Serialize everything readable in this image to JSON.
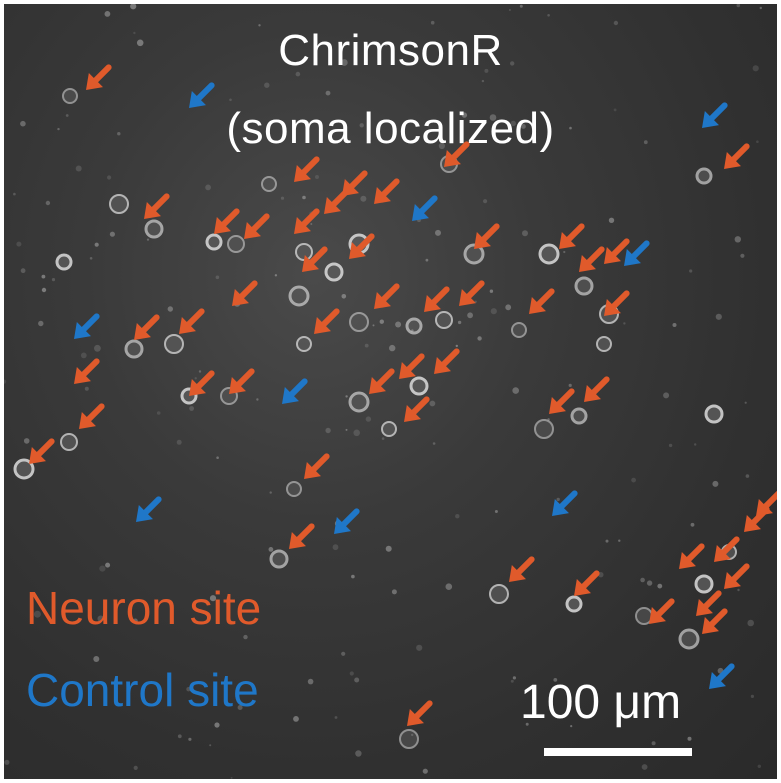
{
  "title_line1": "ChrimsonR",
  "title_line2": "(soma localized)",
  "legend": {
    "neuron": {
      "label": "Neuron site",
      "color": "#e05a2b"
    },
    "control": {
      "label": "Control site",
      "color": "#1f77c8"
    }
  },
  "scale_bar": {
    "label": "100 μm"
  },
  "image": {
    "background": "#333333",
    "cell_color": "#dddddd"
  }
}
